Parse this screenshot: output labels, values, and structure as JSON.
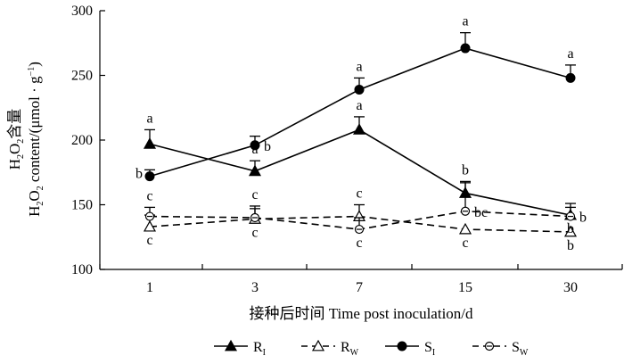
{
  "chart_data": {
    "type": "line",
    "categories": [
      "1",
      "3",
      "7",
      "15",
      "30"
    ],
    "ylabel_line1_pre": "H",
    "ylabel_line1_sub1": "2",
    "ylabel_line1_mid": "O",
    "ylabel_line1_sub2": "2",
    "ylabel_line1_post": "含量",
    "ylabel_line2_pre": "H",
    "ylabel_line2_sub1": "2",
    "ylabel_line2_mid": "O",
    "ylabel_line2_sub2": "2",
    "ylabel_line2_post": " content/(μmol · g",
    "ylabel_line2_sup": "−1",
    "ylabel_line2_end": ")",
    "xlabel": "接种后时间 Time post inoculation/d",
    "ylim": [
      100,
      300
    ],
    "yticks": [
      100,
      150,
      200,
      250,
      300
    ],
    "grid": false,
    "legend_position": "bottom",
    "series": [
      {
        "name": "RI",
        "label_main": "R",
        "label_sub": "I",
        "marker": "triangle",
        "filled": true,
        "dash": false,
        "values": [
          197,
          176,
          208,
          159,
          142
        ],
        "errors": [
          11,
          8,
          10,
          9,
          6
        ],
        "letters": [
          "a",
          "a",
          "a",
          "b",
          "b"
        ],
        "letter_pos": [
          "above",
          "above",
          "above",
          "above",
          "below"
        ]
      },
      {
        "name": "RW",
        "label_main": "R",
        "label_sub": "W",
        "marker": "triangle",
        "filled": false,
        "dash": true,
        "values": [
          133,
          139,
          141,
          131,
          129
        ],
        "errors": [
          9,
          8,
          9,
          0,
          0
        ],
        "letters": [
          "c",
          "c",
          "c",
          "c",
          "b"
        ],
        "letter_pos": [
          "below",
          "below",
          "above",
          "below",
          "below"
        ]
      },
      {
        "name": "SI",
        "label_main": "S",
        "label_sub": "I",
        "marker": "circle",
        "filled": true,
        "dash": false,
        "values": [
          172,
          196,
          239,
          271,
          248
        ],
        "errors": [
          5,
          7,
          9,
          12,
          10
        ],
        "letters": [
          "b",
          "b",
          "a",
          "a",
          "a"
        ],
        "letter_pos": [
          "left",
          "right",
          "above",
          "above",
          "above"
        ]
      },
      {
        "name": "SW",
        "label_main": "S",
        "label_sub": "W",
        "marker": "circle",
        "filled": false,
        "dash": true,
        "values": [
          141,
          140,
          131,
          145,
          141
        ],
        "errors": [
          7,
          9,
          9,
          22,
          10
        ],
        "letters": [
          "c",
          "c",
          "c",
          "bc",
          "b"
        ],
        "letter_pos": [
          "above",
          "above",
          "below",
          "right",
          "right"
        ]
      }
    ]
  }
}
